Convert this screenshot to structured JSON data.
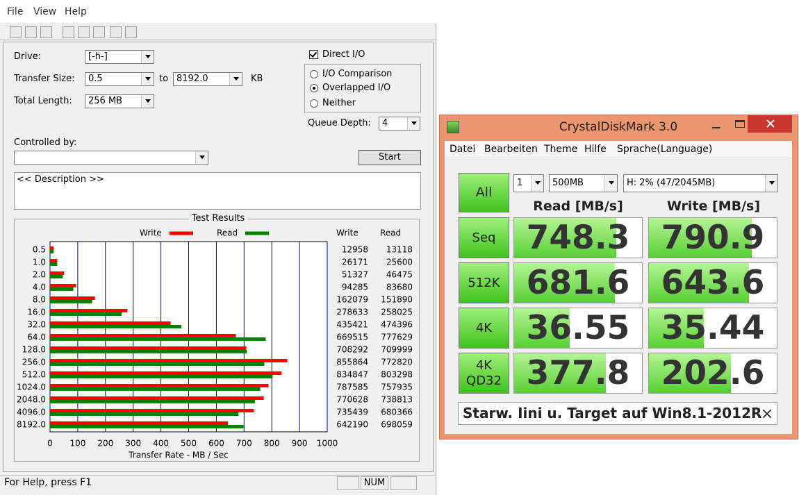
{
  "left_window": {
    "menu": [
      "File",
      "View",
      "Help"
    ],
    "drive_label": "Drive:",
    "drive": "[-h-]",
    "transfer_size_label": "Transfer Size:",
    "transfer_from": "0.5",
    "to": "to",
    "transfer_to": "8192.0",
    "kb": "KB",
    "total_length_label": "Total Length:",
    "total_length": "256 MB",
    "direct_io": "Direct I/O",
    "options": [
      "I/O Comparison",
      "Overlapped I/O",
      "Neither"
    ],
    "queue_depth_label": "Queue Depth:",
    "queue_depth": "4",
    "controlled_by": "Controlled by:",
    "start": "Start",
    "description": "<< Description >>",
    "results_title": "Test Results",
    "table": {
      "headers": [
        "Write",
        "Read"
      ],
      "write": [
        12958,
        26171,
        51327,
        94285,
        162079,
        278633,
        435421,
        669515,
        708292,
        855864,
        834847,
        787585,
        770628,
        735439,
        642190
      ],
      "read": [
        13118,
        25600,
        46475,
        83680,
        151890,
        258025,
        474396,
        777629,
        709999,
        772820,
        803298,
        757935,
        738813,
        680366,
        698059
      ]
    },
    "status": "For Help, press F1",
    "num": "NUM"
  },
  "chart_data": {
    "type": "bar",
    "orientation": "horizontal",
    "categories": [
      "0.5",
      "1.0",
      "2.0",
      "4.0",
      "8.0",
      "16.0",
      "32.0",
      "64.0",
      "128.0",
      "256.0",
      "512.0",
      "1024.0",
      "2048.0",
      "4096.0",
      "8192.0"
    ],
    "series": [
      {
        "name": "Write",
        "color": "#ff0000",
        "values": [
          13,
          26,
          51,
          94,
          162,
          279,
          435,
          670,
          708,
          856,
          835,
          788,
          771,
          735,
          642
        ]
      },
      {
        "name": "Read",
        "color": "#008000",
        "values": [
          13,
          26,
          46,
          84,
          152,
          258,
          474,
          778,
          710,
          773,
          803,
          758,
          739,
          680,
          698
        ]
      }
    ],
    "xlim": [
      0,
      1000
    ],
    "xticks": [
      0,
      100,
      200,
      300,
      400,
      500,
      600,
      700,
      800,
      900,
      1000
    ],
    "xlabel": "Transfer Rate - MB / Sec",
    "grid": true
  },
  "crystal": {
    "title": "CrystalDiskMark 3.0",
    "menu": [
      "Datei",
      "Bearbeiten",
      "Theme",
      "Hilfe",
      "Sprache(Language)"
    ],
    "all": "All",
    "count": "1",
    "size": "500MB",
    "drive": "H: 2% (47/2045MB)",
    "headers": [
      "Read [MB/s]",
      "Write [MB/s]"
    ],
    "rows": [
      {
        "label": [
          "Seq"
        ],
        "read": 748.3,
        "write": 790.9
      },
      {
        "label": [
          "512K"
        ],
        "read": 681.6,
        "write": 643.6
      },
      {
        "label": [
          "4K"
        ],
        "read": 36.55,
        "write": 35.44
      },
      {
        "label": [
          "4K",
          "QD32"
        ],
        "read": 377.8,
        "write": 202.6
      }
    ],
    "comment": "Starw. Iini u. Target auf Win8.1-2012R"
  }
}
